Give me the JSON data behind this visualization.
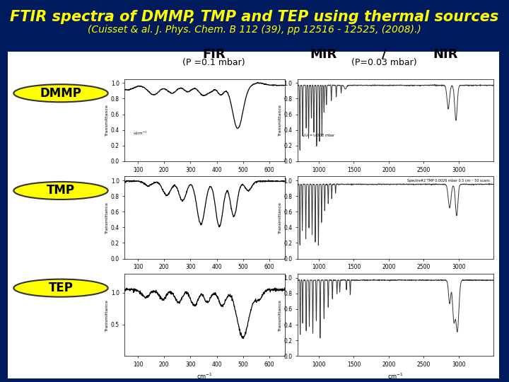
{
  "title": "FTIR spectra of DMMP, TMP and TEP using thermal sources",
  "subtitle": "(Cuisset & al. J. Phys. Chem. B 112 (39), pp 12516 - 12525, (2008).)",
  "title_color": "#FFFF00",
  "subtitle_color": "#FFFF00",
  "background_color": "#001a5e",
  "panel_facecolor": "#ffffff",
  "title_fontsize": 15,
  "subtitle_fontsize": 10,
  "fir_label": "FIR",
  "mir_label": "MIR",
  "slash_label": "/",
  "nir_label": "NIR",
  "fir_pressure": "(P =0.1 mbar)",
  "mir_pressure": "(P=0.03 mbar)",
  "molecules": [
    "DMMP",
    "TMP",
    "TEP"
  ],
  "mol_label_bg": "#FFFF00",
  "mol_label_color": "#000000",
  "header_color": "#000000",
  "header_fontsize": 13,
  "pressure_fontsize": 9,
  "mol_fontsize": 12
}
